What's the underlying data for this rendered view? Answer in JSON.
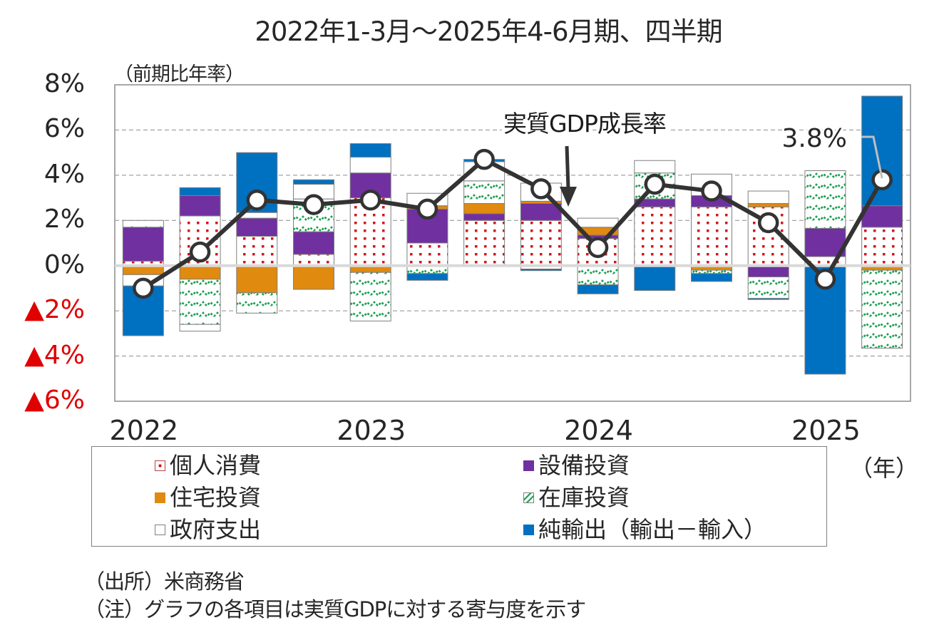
{
  "chart_data": {
    "type": "bar",
    "subtype": "stacked-bar-with-line",
    "title": "2022年1-3月～2025年4-6月期、四半期",
    "ylabel": "（前期比年率）",
    "xlabel": "（年）",
    "ylim": [
      -6,
      8
    ],
    "yticks": [
      {
        "value": 8,
        "label": "8%"
      },
      {
        "value": 6,
        "label": "6%"
      },
      {
        "value": 4,
        "label": "4%"
      },
      {
        "value": 2,
        "label": "2%"
      },
      {
        "value": 0,
        "label": "0%"
      },
      {
        "value": -2,
        "label": "▲2%"
      },
      {
        "value": -4,
        "label": "▲4%"
      },
      {
        "value": -6,
        "label": "▲6%"
      }
    ],
    "grid": true,
    "categories": [
      "2022Q1",
      "2022Q2",
      "2022Q3",
      "2022Q4",
      "2023Q1",
      "2023Q2",
      "2023Q3",
      "2023Q4",
      "2024Q1",
      "2024Q2",
      "2024Q3",
      "2024Q4",
      "2025Q1",
      "2025Q2"
    ],
    "xtick_labels": [
      {
        "index": 0,
        "label": "2022"
      },
      {
        "index": 4,
        "label": "2023"
      },
      {
        "index": 8,
        "label": "2024"
      },
      {
        "index": 12,
        "label": "2025"
      }
    ],
    "series": [
      {
        "key": "consumption",
        "name": "個人消費",
        "pattern": "dots",
        "color": "#d0161b",
        "values": [
          0.2,
          2.2,
          1.3,
          0.5,
          3.0,
          1.0,
          2.0,
          2.0,
          1.2,
          2.6,
          2.6,
          2.6,
          0.4,
          1.7
        ]
      },
      {
        "key": "capex",
        "name": "設備投資",
        "pattern": "solid",
        "color": "#7030a0",
        "values": [
          1.5,
          0.9,
          0.8,
          1.0,
          1.1,
          1.5,
          0.3,
          0.75,
          0.15,
          0.35,
          0.5,
          -0.5,
          1.25,
          0.95
        ]
      },
      {
        "key": "housing",
        "name": "住宅投資",
        "pattern": "solid",
        "color": "#e08a10",
        "values": [
          -0.4,
          -0.6,
          -1.2,
          -1.05,
          -0.3,
          0.15,
          0.45,
          0.1,
          0.35,
          0.0,
          -0.2,
          0.15,
          0.0,
          -0.2
        ]
      },
      {
        "key": "inventory",
        "name": "在庫投資",
        "pattern": "waves",
        "color": "#1aa050",
        "values": [
          0.3,
          -2.0,
          -0.9,
          1.45,
          -2.15,
          -0.35,
          1.0,
          -0.15,
          -0.85,
          1.15,
          -0.15,
          -0.95,
          2.55,
          -3.45
        ]
      },
      {
        "key": "government",
        "name": "政府支出",
        "pattern": "white",
        "color": "#ffffff",
        "values": [
          -0.5,
          -0.3,
          0.25,
          0.65,
          0.7,
          0.55,
          0.85,
          0.8,
          0.4,
          0.55,
          0.95,
          0.55,
          0.0,
          0.0
        ]
      },
      {
        "key": "net_exports",
        "name": "純輸出（輸出－輸入）",
        "pattern": "solid",
        "color": "#0070c0",
        "values": [
          -2.2,
          0.35,
          2.65,
          0.2,
          0.6,
          -0.3,
          0.1,
          -0.07,
          -0.4,
          -1.1,
          -0.35,
          -0.05,
          -4.8,
          4.85
        ]
      }
    ],
    "line": {
      "name": "実質GDP成長率",
      "color": "#333333",
      "values": [
        -1.0,
        0.6,
        2.9,
        2.7,
        2.9,
        2.5,
        4.7,
        3.4,
        0.8,
        3.6,
        3.3,
        1.9,
        -0.6,
        3.8
      ]
    },
    "annotations": [
      {
        "text": "実質GDP成長率",
        "target": "line"
      },
      {
        "text": "3.8%",
        "target_index": 13
      }
    ],
    "legend_position": "bottom"
  },
  "legend": [
    {
      "label": "個人消費",
      "swatch": "dots"
    },
    {
      "label": "設備投資",
      "swatch": "purple"
    },
    {
      "label": "住宅投資",
      "swatch": "orange"
    },
    {
      "label": "在庫投資",
      "swatch": "waves"
    },
    {
      "label": "政府支出",
      "swatch": "white"
    },
    {
      "label": "純輸出（輸出－輸入）",
      "swatch": "blue"
    }
  ],
  "footer": {
    "source": "（出所）米商務省",
    "note": "（注）グラフの各項目は実質GDPに対する寄与度を示す"
  }
}
